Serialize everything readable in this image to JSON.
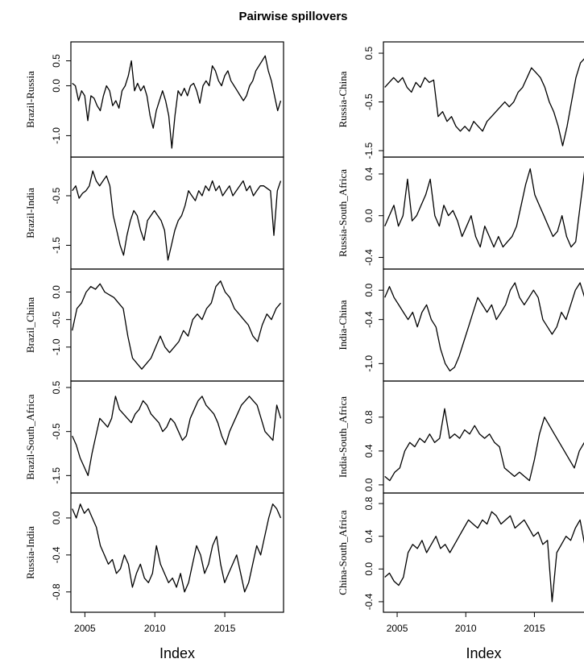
{
  "title": "Pairwise spillovers",
  "chart_data": [
    {
      "type": "line",
      "column": "left",
      "xlabel": "Index",
      "xticks": [
        2005,
        2010,
        2015
      ],
      "panels": [
        {
          "name": "Brazil-Russia",
          "ylim": [
            -1.3,
            0.75
          ],
          "yticks": [
            "-1.0",
            "0.0",
            "0.5"
          ],
          "values": [
            0.05,
            0.0,
            -0.3,
            -0.1,
            -0.2,
            -0.7,
            -0.2,
            -0.25,
            -0.4,
            -0.5,
            -0.2,
            0.0,
            -0.1,
            -0.4,
            -0.3,
            -0.45,
            -0.1,
            0.0,
            0.2,
            0.5,
            -0.1,
            0.05,
            -0.1,
            0.0,
            -0.2,
            -0.6,
            -0.85,
            -0.5,
            -0.3,
            -0.1,
            -0.3,
            -0.6,
            -1.25,
            -0.6,
            -0.1,
            -0.2,
            -0.05,
            -0.2,
            0.0,
            0.05,
            -0.1,
            -0.35,
            0.0,
            0.1,
            0.0,
            0.4,
            0.3,
            0.1,
            0.0,
            0.2,
            0.3,
            0.1,
            0.0,
            -0.1,
            -0.2,
            -0.3,
            -0.2,
            0.0,
            0.1,
            0.3,
            0.4,
            0.5,
            0.6,
            0.3,
            0.1,
            -0.2,
            -0.5,
            -0.3
          ]
        },
        {
          "name": "Brazil-India",
          "ylim": [
            -1.85,
            0.15
          ],
          "yticks": [
            "-1.5",
            "-0.5"
          ],
          "values": [
            -0.4,
            -0.3,
            -0.55,
            -0.45,
            -0.4,
            -0.3,
            0.0,
            -0.2,
            -0.3,
            -0.2,
            -0.1,
            -0.3,
            -0.9,
            -1.2,
            -1.5,
            -1.7,
            -1.3,
            -1.0,
            -0.8,
            -0.9,
            -1.2,
            -1.4,
            -1.0,
            -0.9,
            -0.8,
            -0.9,
            -1.0,
            -1.2,
            -1.8,
            -1.5,
            -1.2,
            -1.0,
            -0.9,
            -0.7,
            -0.4,
            -0.5,
            -0.6,
            -0.4,
            -0.5,
            -0.3,
            -0.4,
            -0.2,
            -0.4,
            -0.3,
            -0.5,
            -0.4,
            -0.3,
            -0.5,
            -0.4,
            -0.3,
            -0.2,
            -0.4,
            -0.3,
            -0.5,
            -0.4,
            -0.3,
            -0.3,
            -0.35,
            -0.4,
            -1.3,
            -0.4,
            -0.2
          ]
        },
        {
          "name": "Brazil_China",
          "ylim": [
            -1.5,
            0.3
          ],
          "yticks": [
            "-1.0",
            "-0.5",
            "0.0"
          ],
          "values": [
            -0.7,
            -0.3,
            -0.2,
            0.0,
            0.1,
            0.05,
            0.15,
            0.0,
            -0.05,
            -0.1,
            -0.2,
            -0.3,
            -0.8,
            -1.2,
            -1.3,
            -1.4,
            -1.3,
            -1.2,
            -1.0,
            -0.8,
            -1.0,
            -1.1,
            -1.0,
            -0.9,
            -0.7,
            -0.8,
            -0.5,
            -0.4,
            -0.5,
            -0.3,
            -0.2,
            0.1,
            0.2,
            0.0,
            -0.1,
            -0.3,
            -0.4,
            -0.5,
            -0.6,
            -0.8,
            -0.9,
            -0.6,
            -0.4,
            -0.5,
            -0.3,
            -0.2
          ]
        },
        {
          "name": "Brazil-South_Africa",
          "ylim": [
            -1.75,
            0.5
          ],
          "yticks": [
            "-1.5",
            "-0.5",
            "0.5"
          ],
          "values": [
            -0.6,
            -0.8,
            -1.1,
            -1.3,
            -1.5,
            -1.0,
            -0.6,
            -0.2,
            -0.3,
            -0.4,
            -0.2,
            0.3,
            0.0,
            -0.1,
            -0.2,
            -0.3,
            -0.1,
            0.0,
            0.2,
            0.1,
            -0.1,
            -0.2,
            -0.3,
            -0.5,
            -0.4,
            -0.2,
            -0.3,
            -0.5,
            -0.7,
            -0.6,
            -0.2,
            0.0,
            0.2,
            0.3,
            0.1,
            0.0,
            -0.1,
            -0.3,
            -0.6,
            -0.8,
            -0.5,
            -0.3,
            -0.1,
            0.1,
            0.2,
            0.3,
            0.2,
            0.1,
            -0.2,
            -0.5,
            -0.6,
            -0.7,
            0.1,
            -0.2
          ]
        },
        {
          "name": "Russia-India",
          "ylim": [
            -0.95,
            0.2
          ],
          "yticks": [
            "-0.8",
            "-0.4",
            "0.0"
          ],
          "values": [
            0.1,
            0.0,
            0.15,
            0.05,
            0.1,
            0.0,
            -0.1,
            -0.3,
            -0.4,
            -0.5,
            -0.45,
            -0.6,
            -0.55,
            -0.4,
            -0.5,
            -0.75,
            -0.6,
            -0.5,
            -0.65,
            -0.7,
            -0.6,
            -0.3,
            -0.5,
            -0.6,
            -0.7,
            -0.65,
            -0.75,
            -0.6,
            -0.8,
            -0.7,
            -0.5,
            -0.3,
            -0.4,
            -0.6,
            -0.5,
            -0.3,
            -0.2,
            -0.5,
            -0.7,
            -0.6,
            -0.5,
            -0.4,
            -0.6,
            -0.8,
            -0.7,
            -0.5,
            -0.3,
            -0.4,
            -0.2,
            0.0,
            0.15,
            0.1,
            0.0
          ]
        }
      ]
    },
    {
      "type": "line",
      "column": "right",
      "xlabel": "Index",
      "xticks": [
        2005,
        2010,
        2015
      ],
      "panels": [
        {
          "name": "Russia-China",
          "ylim": [
            -1.5,
            0.6
          ],
          "yticks": [
            "-1.5",
            "-0.5",
            "0.5"
          ],
          "values": [
            -0.2,
            -0.1,
            0.0,
            -0.1,
            0.0,
            -0.2,
            -0.3,
            -0.1,
            -0.2,
            0.0,
            -0.1,
            -0.05,
            -0.8,
            -0.7,
            -0.9,
            -0.8,
            -1.0,
            -1.1,
            -1.0,
            -1.1,
            -0.9,
            -1.0,
            -1.1,
            -0.9,
            -0.8,
            -0.7,
            -0.6,
            -0.5,
            -0.6,
            -0.5,
            -0.3,
            -0.2,
            0.0,
            0.2,
            0.1,
            0.0,
            -0.2,
            -0.5,
            -0.7,
            -1.0,
            -1.4,
            -1.0,
            -0.5,
            0.0,
            0.3,
            0.4,
            0.3
          ]
        },
        {
          "name": "Russia-South_Africa",
          "ylim": [
            -0.45,
            0.5
          ],
          "yticks": [
            "-0.4",
            "0.0",
            "0.4"
          ],
          "values": [
            -0.1,
            0.0,
            0.1,
            -0.1,
            0.0,
            0.35,
            -0.05,
            0.0,
            0.1,
            0.2,
            0.35,
            0.0,
            -0.1,
            0.1,
            0.0,
            0.05,
            -0.05,
            -0.2,
            -0.1,
            0.0,
            -0.2,
            -0.3,
            -0.1,
            -0.2,
            -0.3,
            -0.2,
            -0.3,
            -0.25,
            -0.2,
            -0.1,
            0.1,
            0.3,
            0.45,
            0.2,
            0.1,
            0.0,
            -0.1,
            -0.2,
            -0.15,
            0.0,
            -0.2,
            -0.3,
            -0.25,
            0.1,
            0.45,
            0.3
          ]
        },
        {
          "name": "India-China",
          "ylim": [
            -1.15,
            0.2
          ],
          "yticks": [
            "-1.0",
            "-0.4",
            "0.0"
          ],
          "values": [
            -0.1,
            0.05,
            -0.1,
            -0.2,
            -0.3,
            -0.4,
            -0.3,
            -0.5,
            -0.3,
            -0.2,
            -0.4,
            -0.5,
            -0.8,
            -1.0,
            -1.1,
            -1.05,
            -0.9,
            -0.7,
            -0.5,
            -0.3,
            -0.1,
            -0.2,
            -0.3,
            -0.2,
            -0.4,
            -0.3,
            -0.2,
            0.0,
            0.1,
            -0.1,
            -0.2,
            -0.1,
            0.0,
            -0.1,
            -0.4,
            -0.5,
            -0.6,
            -0.5,
            -0.3,
            -0.4,
            -0.2,
            0.0,
            0.1,
            -0.1,
            0.0
          ]
        },
        {
          "name": "India-South_Africa",
          "ylim": [
            -0.02,
            1.15
          ],
          "yticks": [
            "0.0",
            "0.4",
            "0.8"
          ],
          "values": [
            0.1,
            0.05,
            0.15,
            0.2,
            0.4,
            0.5,
            0.45,
            0.55,
            0.5,
            0.6,
            0.5,
            0.55,
            0.9,
            0.55,
            0.6,
            0.55,
            0.65,
            0.6,
            0.7,
            0.6,
            0.55,
            0.6,
            0.5,
            0.45,
            0.2,
            0.15,
            0.1,
            0.15,
            0.1,
            0.05,
            0.3,
            0.6,
            0.8,
            0.7,
            0.6,
            0.5,
            0.4,
            0.3,
            0.2,
            0.4,
            0.5,
            0.55
          ]
        },
        {
          "name": "China-South_Africa",
          "ylim": [
            -0.45,
            0.85
          ],
          "yticks": [
            "-0.4",
            "0.0",
            "0.4",
            "0.8"
          ],
          "values": [
            -0.1,
            -0.05,
            -0.15,
            -0.2,
            -0.1,
            0.2,
            0.3,
            0.25,
            0.35,
            0.2,
            0.3,
            0.4,
            0.25,
            0.3,
            0.2,
            0.3,
            0.4,
            0.5,
            0.6,
            0.55,
            0.5,
            0.6,
            0.55,
            0.7,
            0.65,
            0.55,
            0.6,
            0.65,
            0.5,
            0.55,
            0.6,
            0.5,
            0.4,
            0.45,
            0.3,
            0.35,
            -0.4,
            0.2,
            0.3,
            0.4,
            0.35,
            0.5,
            0.6,
            0.3,
            0.5
          ]
        }
      ]
    }
  ]
}
